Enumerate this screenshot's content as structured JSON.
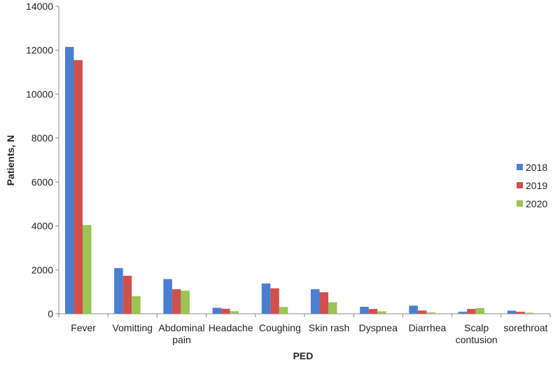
{
  "chart_data": {
    "type": "bar",
    "title": "",
    "xlabel": "PED",
    "ylabel": "Patients, N",
    "ylim": [
      0,
      14000
    ],
    "yticks": [
      0,
      2000,
      4000,
      6000,
      8000,
      10000,
      12000,
      14000
    ],
    "grid": false,
    "legend_position": "right",
    "categories": [
      [
        "Fever"
      ],
      [
        "Vomitting"
      ],
      [
        "Abdominal",
        "pain"
      ],
      [
        "Headache"
      ],
      [
        "Coughing"
      ],
      [
        "Skin rash"
      ],
      [
        "Dyspnea"
      ],
      [
        "Diarrhea"
      ],
      [
        "Scalp",
        "contusion"
      ],
      [
        "sorethroat"
      ]
    ],
    "series": [
      {
        "name": "2018",
        "color": "#4a7fd0",
        "values": [
          12150,
          2080,
          1580,
          270,
          1380,
          1120,
          320,
          370,
          90,
          140
        ]
      },
      {
        "name": "2019",
        "color": "#d0504d",
        "values": [
          11550,
          1730,
          1120,
          230,
          1160,
          980,
          220,
          150,
          220,
          90
        ]
      },
      {
        "name": "2020",
        "color": "#9ac453",
        "values": [
          4040,
          800,
          1050,
          120,
          310,
          520,
          110,
          60,
          260,
          50
        ]
      }
    ]
  }
}
